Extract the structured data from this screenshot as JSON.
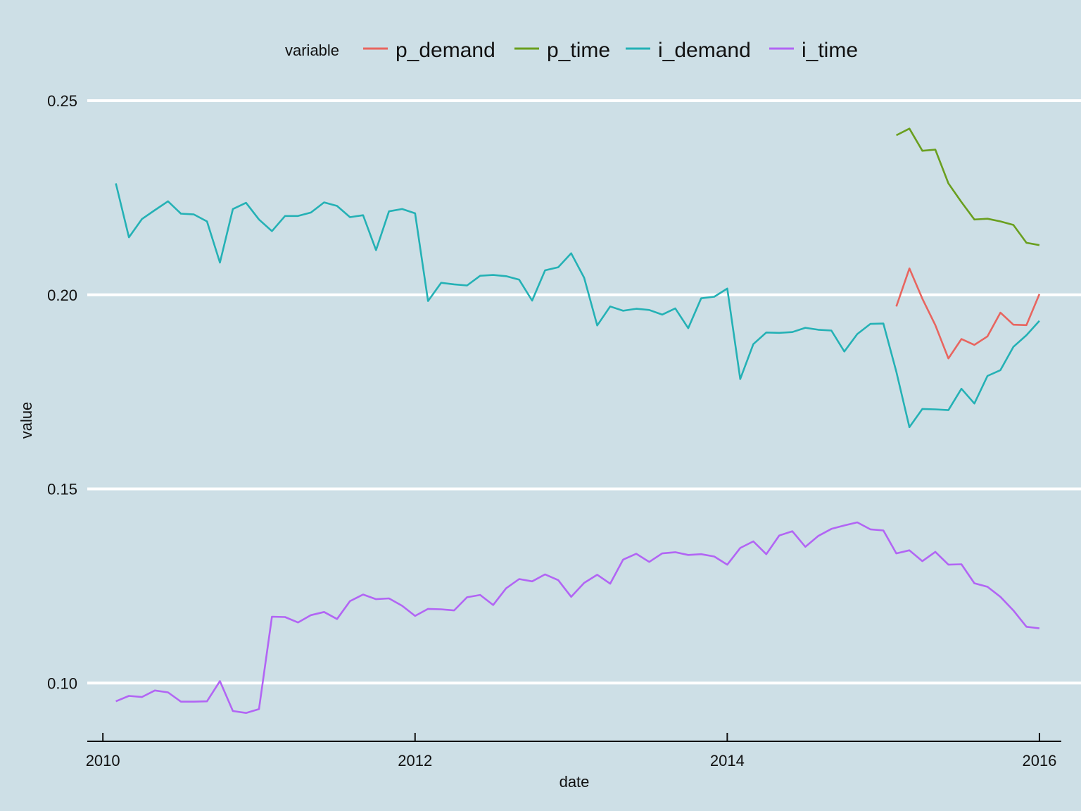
{
  "chart_data": {
    "type": "line",
    "title": "",
    "xlabel": "date",
    "ylabel": "value",
    "xlim": [
      2009.9,
      2016.14
    ],
    "ylim": [
      0.085,
      0.2578
    ],
    "x_ticks": [
      2010,
      2012,
      2014,
      2016
    ],
    "x_tick_labels": [
      "2010",
      "2012",
      "2014",
      "2016"
    ],
    "y_ticks": [
      0.1,
      0.15,
      0.2,
      0.25
    ],
    "y_tick_labels": [
      "0.10",
      "0.15",
      "0.20",
      "0.25"
    ],
    "grid": "horizontal major",
    "legend": {
      "title": "variable",
      "position": "top"
    },
    "series": [
      {
        "name": "p_demand",
        "color": "#e8655f",
        "x": [
          2015.083,
          2015.167,
          2015.25,
          2015.333,
          2015.417,
          2015.5,
          2015.583,
          2015.667,
          2015.75,
          2015.833,
          2015.917,
          2016.0
        ],
        "y": [
          0.197,
          0.2068,
          0.199,
          0.1922,
          0.1836,
          0.1886,
          0.1871,
          0.1893,
          0.1954,
          0.1923,
          0.1922,
          0.2002
        ]
      },
      {
        "name": "p_time",
        "color": "#6a9f1f",
        "x": [
          2015.083,
          2015.167,
          2015.25,
          2015.333,
          2015.417,
          2015.5,
          2015.583,
          2015.667,
          2015.75,
          2015.833,
          2015.917,
          2016.0
        ],
        "y": [
          0.2411,
          0.2428,
          0.2371,
          0.2374,
          0.2287,
          0.2239,
          0.2194,
          0.2196,
          0.2189,
          0.218,
          0.2134,
          0.2128
        ]
      },
      {
        "name": "i_demand",
        "color": "#24b1b5",
        "x": [
          2010.083,
          2010.167,
          2010.25,
          2010.333,
          2010.417,
          2010.5,
          2010.583,
          2010.667,
          2010.75,
          2010.833,
          2010.917,
          2011.0,
          2011.083,
          2011.167,
          2011.25,
          2011.333,
          2011.417,
          2011.5,
          2011.583,
          2011.667,
          2011.75,
          2011.833,
          2011.917,
          2012.0,
          2012.083,
          2012.167,
          2012.25,
          2012.333,
          2012.417,
          2012.5,
          2012.583,
          2012.667,
          2012.75,
          2012.833,
          2012.917,
          2013.0,
          2013.083,
          2013.167,
          2013.25,
          2013.333,
          2013.417,
          2013.5,
          2013.583,
          2013.667,
          2013.75,
          2013.833,
          2013.917,
          2014.0,
          2014.083,
          2014.167,
          2014.25,
          2014.333,
          2014.417,
          2014.5,
          2014.583,
          2014.667,
          2014.75,
          2014.833,
          2014.917,
          2015.0,
          2015.083,
          2015.167,
          2015.25,
          2015.333,
          2015.417,
          2015.5,
          2015.583,
          2015.667,
          2015.75,
          2015.833,
          2015.917,
          2016.0
        ],
        "y": [
          0.2287,
          0.2148,
          0.2195,
          0.2218,
          0.2241,
          0.2209,
          0.2207,
          0.2189,
          0.2083,
          0.2221,
          0.2237,
          0.2194,
          0.2164,
          0.2203,
          0.2203,
          0.2212,
          0.2238,
          0.2229,
          0.22,
          0.2205,
          0.2115,
          0.2215,
          0.2221,
          0.221,
          0.1984,
          0.2031,
          0.2027,
          0.2024,
          0.2049,
          0.2051,
          0.2048,
          0.2039,
          0.1985,
          0.2063,
          0.2071,
          0.2107,
          0.2044,
          0.1921,
          0.197,
          0.1959,
          0.1964,
          0.1961,
          0.1949,
          0.1965,
          0.1914,
          0.1991,
          0.1995,
          0.2016,
          0.1783,
          0.1873,
          0.1903,
          0.1902,
          0.1904,
          0.1915,
          0.191,
          0.1908,
          0.1854,
          0.1899,
          0.1925,
          0.1926,
          0.1802,
          0.1659,
          0.1706,
          0.1705,
          0.1703,
          0.1758,
          0.172,
          0.1791,
          0.1806,
          0.1866,
          0.1896,
          0.1933
        ]
      },
      {
        "name": "i_time",
        "color": "#b265f4",
        "x": [
          2010.083,
          2010.167,
          2010.25,
          2010.333,
          2010.417,
          2010.5,
          2010.583,
          2010.667,
          2010.75,
          2010.833,
          2010.917,
          2011.0,
          2011.083,
          2011.167,
          2011.25,
          2011.333,
          2011.417,
          2011.5,
          2011.583,
          2011.667,
          2011.75,
          2011.833,
          2011.917,
          2012.0,
          2012.083,
          2012.167,
          2012.25,
          2012.333,
          2012.417,
          2012.5,
          2012.583,
          2012.667,
          2012.75,
          2012.833,
          2012.917,
          2013.0,
          2013.083,
          2013.167,
          2013.25,
          2013.333,
          2013.417,
          2013.5,
          2013.583,
          2013.667,
          2013.75,
          2013.833,
          2013.917,
          2014.0,
          2014.083,
          2014.167,
          2014.25,
          2014.333,
          2014.417,
          2014.5,
          2014.583,
          2014.667,
          2014.75,
          2014.833,
          2014.917,
          2015.0,
          2015.083,
          2015.167,
          2015.25,
          2015.333,
          2015.417,
          2015.5,
          2015.583,
          2015.667,
          2015.75,
          2015.833,
          2015.917,
          2016.0
        ],
        "y": [
          0.0953,
          0.0967,
          0.0964,
          0.0981,
          0.0976,
          0.0952,
          0.0952,
          0.0953,
          0.1005,
          0.0928,
          0.0923,
          0.0933,
          0.1171,
          0.117,
          0.1156,
          0.1175,
          0.1183,
          0.1165,
          0.1211,
          0.1228,
          0.1216,
          0.1218,
          0.1199,
          0.1173,
          0.1191,
          0.119,
          0.1187,
          0.1221,
          0.1227,
          0.1201,
          0.1244,
          0.1268,
          0.1262,
          0.128,
          0.1265,
          0.1222,
          0.1258,
          0.1279,
          0.1256,
          0.1318,
          0.1333,
          0.1312,
          0.1334,
          0.1337,
          0.133,
          0.1332,
          0.1326,
          0.1305,
          0.1348,
          0.1365,
          0.1332,
          0.138,
          0.1391,
          0.1351,
          0.1379,
          0.1397,
          0.1406,
          0.1414,
          0.1396,
          0.1393,
          0.1334,
          0.1342,
          0.1314,
          0.1338,
          0.1305,
          0.1306,
          0.1257,
          0.1248,
          0.1222,
          0.1187,
          0.1145,
          0.1141
        ]
      }
    ]
  }
}
